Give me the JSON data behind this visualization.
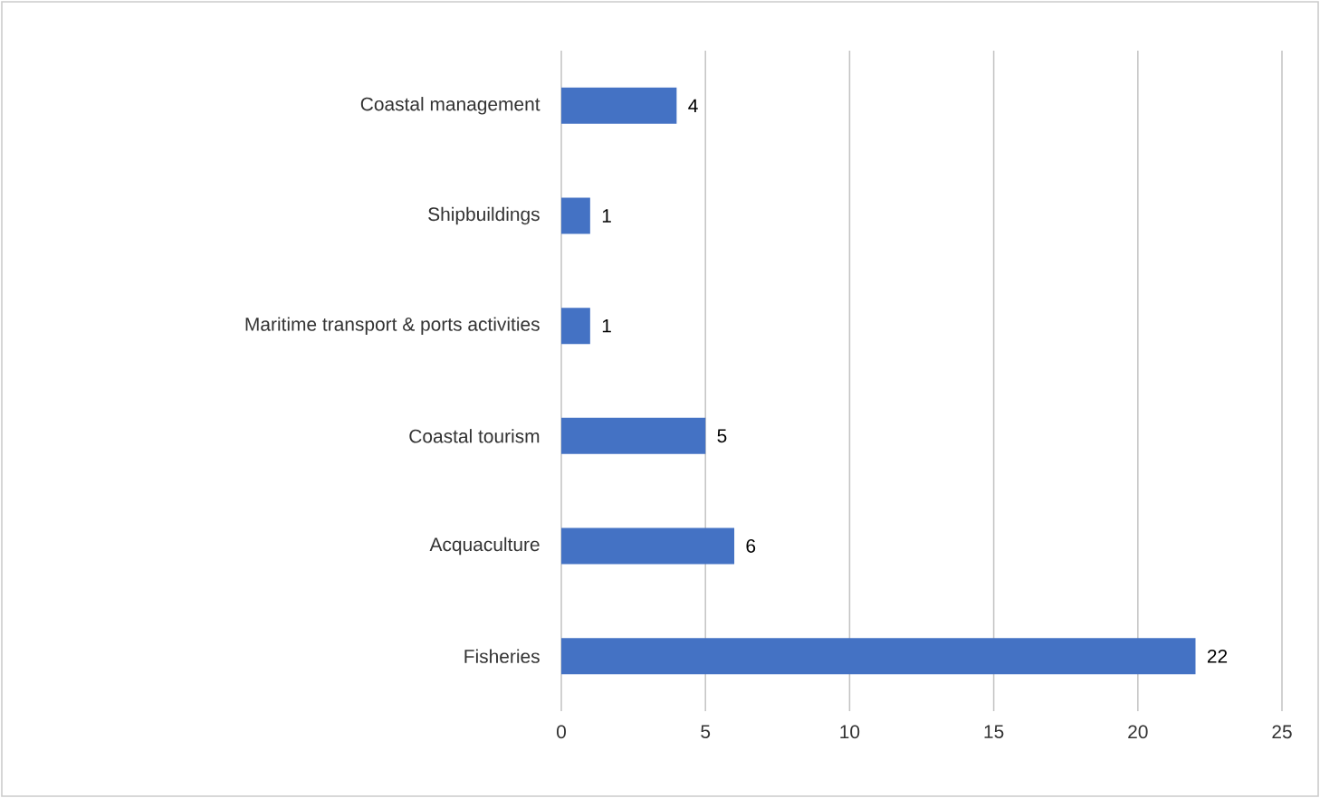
{
  "chart_data": {
    "type": "bar",
    "orientation": "horizontal",
    "categories": [
      "Coastal management",
      "Shipbuildings",
      "Maritime transport & ports activities",
      "Coastal tourism",
      "Acquaculture",
      "Fisheries"
    ],
    "values": [
      4,
      1,
      1,
      5,
      6,
      22
    ],
    "color": "#4472c4",
    "xlim": [
      0,
      25
    ],
    "xticks": [
      0,
      5,
      10,
      15,
      20,
      25
    ],
    "grid": "x",
    "data_labels": true
  }
}
